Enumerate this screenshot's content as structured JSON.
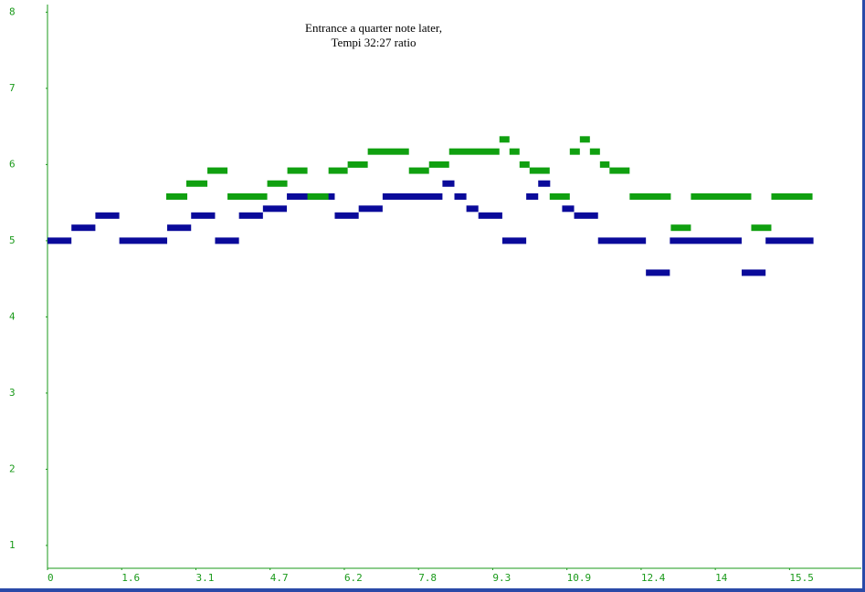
{
  "chart_data": {
    "type": "notes",
    "title": [
      "Entrance a quarter note later,",
      "Tempi 32:27 ratio"
    ],
    "xlim": [
      0,
      17
    ],
    "ylim": [
      0.7,
      8.1
    ],
    "xticks": [
      0,
      {
        "value": 1.55,
        "label": "1.6"
      },
      3.1,
      {
        "value": 4.65,
        "label": "4.7"
      },
      6.2,
      {
        "value": 7.75,
        "label": "7.8"
      },
      9.3,
      {
        "value": 10.85,
        "label": "10.9"
      },
      12.4,
      {
        "value": 13.95,
        "label": "14"
      },
      15.5
    ],
    "yticks": [
      1,
      2,
      3,
      4,
      5,
      6,
      7,
      8
    ],
    "axis_color": "#1a9a1a",
    "series": [
      {
        "color": "#0a0a9a",
        "starts": [
          0,
          0.5,
          1.0,
          1.5,
          2.5,
          3.0,
          3.5,
          4.0,
          4.5,
          5.0,
          6.0,
          6.5,
          7.0,
          8.25,
          8.5,
          8.75,
          9.0,
          9.5,
          10.0,
          10.25,
          10.75,
          11.0,
          11.5,
          12.5,
          13.0,
          14.5,
          15.0
        ],
        "ends": [
          0.5,
          1.0,
          1.5,
          2.5,
          3.0,
          3.5,
          4.0,
          4.5,
          5.0,
          6.0,
          6.5,
          7.0,
          8.25,
          8.5,
          8.75,
          9.0,
          9.5,
          10.0,
          10.25,
          10.5,
          11.0,
          11.5,
          12.5,
          13.0,
          14.5,
          15.0,
          16.0
        ],
        "values": [
          5,
          5.17,
          5.33,
          5,
          5.17,
          5.33,
          5,
          5.33,
          5.42,
          5.58,
          5.33,
          5.42,
          5.58,
          5.75,
          5.58,
          5.42,
          5.33,
          5,
          5.58,
          5.75,
          5.42,
          5.33,
          5,
          4.58,
          5,
          4.58,
          5
        ]
      },
      {
        "color": "#10a010",
        "starts": [
          2.48,
          2.9,
          3.34,
          3.76,
          4.59,
          5.01,
          5.43,
          5.87,
          6.27,
          6.69,
          7.55,
          7.97,
          8.39,
          9.44,
          9.65,
          9.86,
          10.07,
          10.49,
          10.91,
          11.12,
          11.33,
          11.54,
          11.74,
          12.16,
          13.02,
          13.44,
          14.7,
          15.12
        ],
        "ends": [
          2.92,
          3.34,
          3.76,
          4.59,
          5.01,
          5.43,
          5.87,
          6.27,
          6.69,
          7.55,
          7.97,
          8.39,
          9.44,
          9.65,
          9.86,
          10.07,
          10.49,
          10.91,
          11.12,
          11.33,
          11.54,
          11.74,
          12.16,
          13.02,
          13.44,
          14.7,
          15.12,
          15.98
        ],
        "values": [
          5.58,
          5.75,
          5.92,
          5.58,
          5.75,
          5.92,
          5.58,
          5.92,
          6,
          6.17,
          5.92,
          6,
          6.17,
          6.33,
          6.17,
          6,
          5.92,
          5.58,
          6.17,
          6.33,
          6.17,
          6,
          5.92,
          5.58,
          5.17,
          5.58,
          5.17,
          5.58
        ]
      }
    ]
  }
}
